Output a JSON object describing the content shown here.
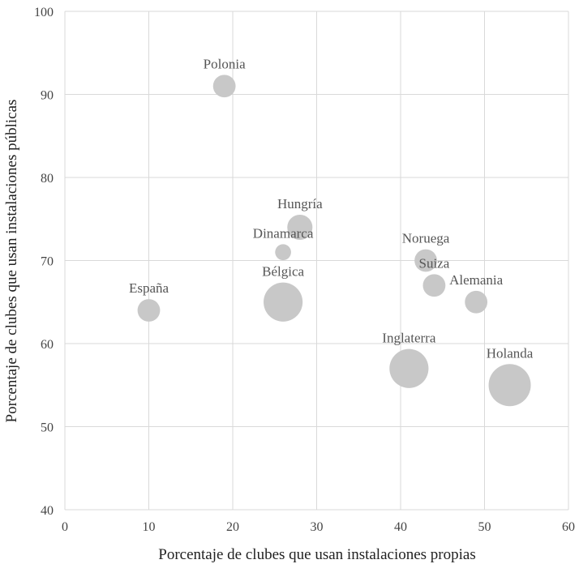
{
  "chart_data": {
    "type": "scatter",
    "subtype": "bubble",
    "title": "",
    "xlabel": "Porcentaje de clubes que usan instalaciones propias",
    "ylabel": "Porcentaje de clubes que usan instalaciones públicas",
    "xlim": [
      0,
      60
    ],
    "ylim": [
      40,
      100
    ],
    "xticks": [
      0,
      10,
      20,
      30,
      40,
      50,
      60
    ],
    "yticks": [
      40,
      50,
      60,
      70,
      80,
      90,
      100
    ],
    "grid": true,
    "legend": "none",
    "colors": {
      "bubble": "#c8c8c8",
      "grid": "#d9d9d9",
      "label": "#555555"
    },
    "points": [
      {
        "label": "Polonia",
        "x": 19,
        "y": 91,
        "size": 2
      },
      {
        "label": "Hungría",
        "x": 28,
        "y": 74,
        "size": 2.5
      },
      {
        "label": "Dinamarca",
        "x": 26,
        "y": 71,
        "size": 1
      },
      {
        "label": "Noruega",
        "x": 43,
        "y": 70,
        "size": 2
      },
      {
        "label": "Bélgica",
        "x": 26,
        "y": 65,
        "size": 6
      },
      {
        "label": "Suiza",
        "x": 44,
        "y": 67,
        "size": 2
      },
      {
        "label": "Alemania",
        "x": 49,
        "y": 65,
        "size": 2
      },
      {
        "label": "España",
        "x": 10,
        "y": 64,
        "size": 2
      },
      {
        "label": "Inglaterra",
        "x": 41,
        "y": 57,
        "size": 6
      },
      {
        "label": "Holanda",
        "x": 53,
        "y": 55,
        "size": 7
      }
    ]
  }
}
